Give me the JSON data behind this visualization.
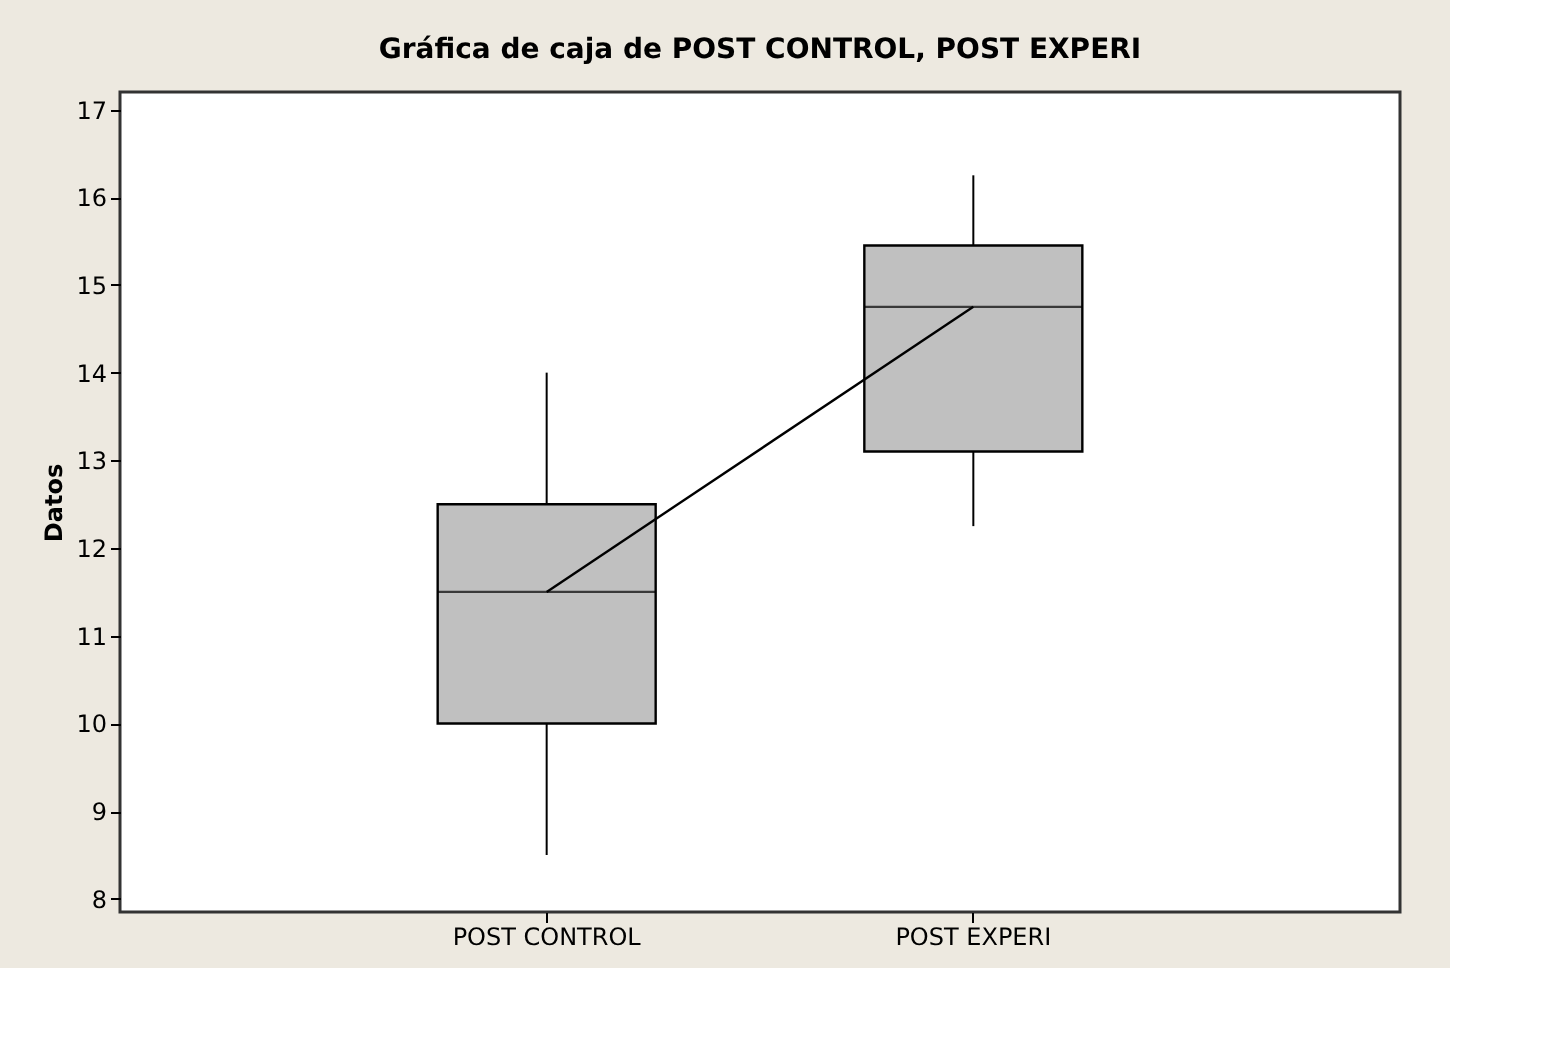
{
  "chart_data": {
    "type": "box",
    "title": "Gráfica de caja de POST CONTROL, POST EXPERI",
    "ylabel": "Datos",
    "categories": [
      "POST CONTROL",
      "POST EXPERI"
    ],
    "series": [
      {
        "color": "#c0c0c0",
        "boxes": [
          {
            "low": 8.5,
            "q1": 10.0,
            "median": 11.5,
            "q3": 12.5,
            "high": 14.0
          },
          {
            "low": 12.25,
            "q1": 13.1,
            "median": 14.75,
            "q3": 15.45,
            "high": 16.25
          }
        ]
      },
      {
        "type": "line",
        "color": "#000000",
        "values": [
          11.5,
          14.75
        ]
      }
    ],
    "ylim": [
      7.85,
      17.2
    ],
    "yticks": [
      8,
      9,
      10,
      11,
      12,
      13,
      14,
      15,
      16,
      17
    ],
    "grid": false
  }
}
